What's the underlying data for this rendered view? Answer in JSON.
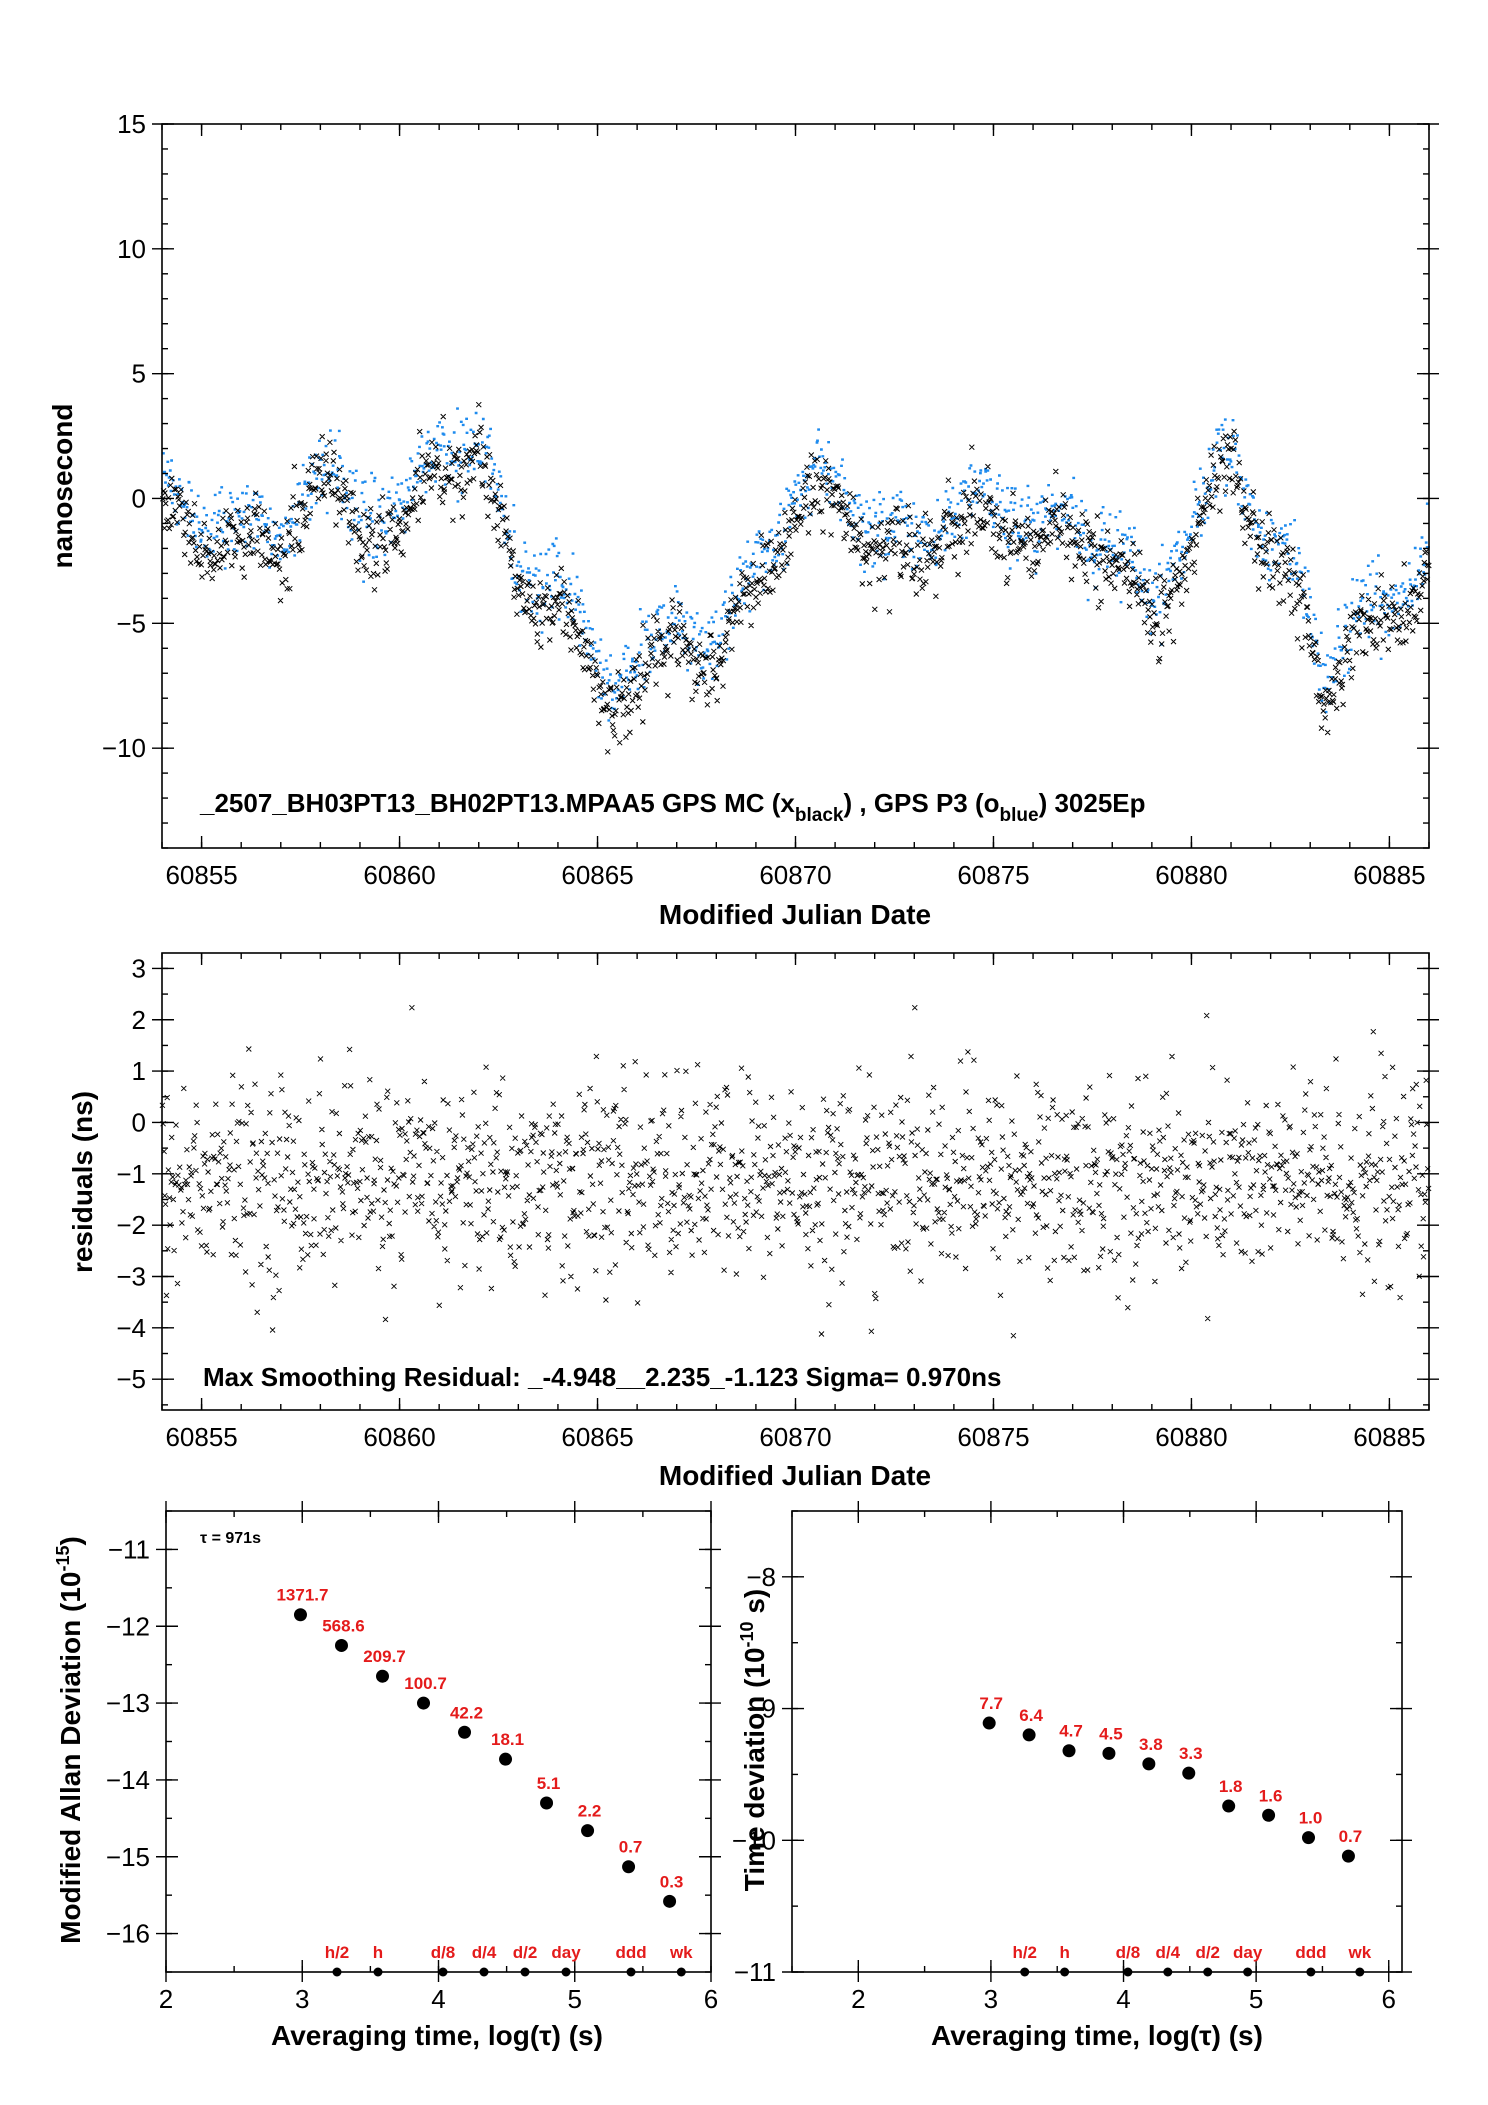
{
  "chart_data": [
    {
      "type": "scatter",
      "title": "",
      "xlabel": "Modified Julian Date",
      "ylabel": "nanosecond",
      "xlim": [
        60854,
        60886
      ],
      "ylim": [
        -14,
        15
      ],
      "x_ticks": [
        60855,
        60860,
        60865,
        60870,
        60875,
        60880,
        60885
      ],
      "y_ticks": [
        -10,
        -5,
        0,
        5,
        10,
        15
      ],
      "y_tick_labels": [
        "−10",
        "−5",
        "0",
        "5",
        "10",
        "15"
      ],
      "grid": false,
      "legend": "none",
      "annotation": {
        "main": "_2507_BH03PT13_BH02PT13.MPAA5     GPS MC (x",
        "sub1": "black",
        "mid": ") ,  GPS P3 (o",
        "sub2": "blue",
        "end": ")  3025Ep"
      },
      "trend_knots": {
        "x": [
          60854,
          60855,
          60856,
          60857,
          60858,
          60859,
          60860,
          60861,
          60862,
          60863,
          60864,
          60865,
          60865.6,
          60866,
          60867,
          60868,
          60869,
          60870,
          60871,
          60872,
          60873,
          60874,
          60875,
          60876,
          60877,
          60878,
          60879,
          60880,
          60881,
          60882,
          60883,
          60883.3,
          60884,
          60885,
          60886
        ],
        "y": [
          -0.5,
          -1.5,
          -2.0,
          -1.8,
          0.5,
          -1.0,
          -1.5,
          1.5,
          1.5,
          -3.5,
          -4.5,
          -7.0,
          -8.0,
          -7.5,
          -5.5,
          -7.0,
          -3.0,
          -1.0,
          0.5,
          -2.5,
          -2.0,
          -1.5,
          -0.5,
          -2.0,
          -1.5,
          -2.5,
          -5.0,
          -2.0,
          1.5,
          -2.5,
          -5.0,
          -8.0,
          -5.5,
          -5.0,
          -2.5
        ]
      },
      "series": [
        {
          "name": "GPS MC (x black)",
          "marker": "x",
          "color": "#000000",
          "offset": 0,
          "count": 3025
        },
        {
          "name": "GPS P3 (o blue)",
          "marker": "o",
          "color": "#1e8bee",
          "offset": 0.8,
          "count": 3025
        }
      ]
    },
    {
      "type": "scatter",
      "title": "",
      "xlabel": "Modified Julian Date",
      "ylabel": "residuals (ns)",
      "xlim": [
        60854,
        60886
      ],
      "ylim": [
        -5.6,
        3.3
      ],
      "x_ticks": [
        60855,
        60860,
        60865,
        60870,
        60875,
        60880,
        60885
      ],
      "y_ticks": [
        -5,
        -4,
        -3,
        -2,
        -1,
        0,
        1,
        2,
        3
      ],
      "y_tick_labels": [
        "−5",
        "−4",
        "−3",
        "−2",
        "−1",
        "0",
        "1",
        "2",
        "3"
      ],
      "grid": false,
      "legend": "none",
      "annotation": "Max Smoothing Residual: _-4.948__2.235_-1.123  Sigma= 0.970ns",
      "residual_stats": {
        "min": -4.948,
        "max": 2.235,
        "mean": -1.123,
        "sigma": 0.97,
        "count": 1600
      },
      "series": [
        {
          "name": "residuals",
          "marker": "x",
          "color": "#000000"
        }
      ]
    },
    {
      "type": "scatter",
      "title": "",
      "xlabel": "Averaging time, log(τ) (s)",
      "ylabel": "Modified Allan Deviation (10",
      "ylabel_sup": "-15",
      "ylabel_end": ")",
      "xlim": [
        2,
        6
      ],
      "ylim": [
        -16.5,
        -10.5
      ],
      "x_ticks": [
        2,
        3,
        4,
        5,
        6
      ],
      "y_ticks": [
        -16,
        -15,
        -14,
        -13,
        -12,
        -11
      ],
      "y_tick_labels": [
        "−16",
        "−15",
        "−14",
        "−13",
        "−12",
        "−11"
      ],
      "tau_note": "τ = 971s",
      "points": {
        "x": [
          2.987,
          3.288,
          3.589,
          3.89,
          4.191,
          4.492,
          4.793,
          5.094,
          5.395,
          5.696
        ],
        "y": [
          -11.85,
          -12.25,
          -12.65,
          -13.0,
          -13.38,
          -13.73,
          -14.3,
          -14.66,
          -15.13,
          -15.58
        ],
        "labels": [
          "1371.7",
          "568.6",
          "209.7",
          "100.7",
          "42.2",
          "18.1",
          "5.1",
          "2.2",
          "0.7",
          "0.3"
        ]
      },
      "markers": {
        "x": [
          3.255,
          3.556,
          4.033,
          4.334,
          4.635,
          4.936,
          5.413,
          5.782
        ],
        "labels": [
          "h/2",
          "h",
          "d/8",
          "d/4",
          "d/2",
          "day",
          "ddd",
          "wk"
        ]
      }
    },
    {
      "type": "scatter",
      "title": "",
      "xlabel": "Averaging time, log(τ) (s)",
      "ylabel": "Time deviation (10",
      "ylabel_sup": "-10",
      "ylabel_end": " s)",
      "xlim": [
        1.5,
        6.1
      ],
      "ylim": [
        -11,
        -7.5
      ],
      "x_ticks": [
        2,
        3,
        4,
        5,
        6
      ],
      "y_ticks": [
        -11,
        -10,
        -9,
        -8
      ],
      "y_tick_labels": [
        "−11",
        "−10",
        "−9",
        "−8"
      ],
      "points": {
        "x": [
          2.987,
          3.288,
          3.589,
          3.89,
          4.191,
          4.492,
          4.793,
          5.094,
          5.395,
          5.696
        ],
        "y": [
          -9.11,
          -9.2,
          -9.32,
          -9.34,
          -9.42,
          -9.49,
          -9.74,
          -9.81,
          -9.98,
          -10.12
        ],
        "labels": [
          "7.7",
          "6.4",
          "4.7",
          "4.5",
          "3.8",
          "3.3",
          "1.8",
          "1.6",
          "1.0",
          "0.7"
        ]
      },
      "markers": {
        "x": [
          3.255,
          3.556,
          4.033,
          4.334,
          4.635,
          4.936,
          5.413,
          5.782
        ],
        "labels": [
          "h/2",
          "h",
          "d/8",
          "d/4",
          "d/2",
          "day",
          "ddd",
          "wk"
        ]
      }
    }
  ]
}
